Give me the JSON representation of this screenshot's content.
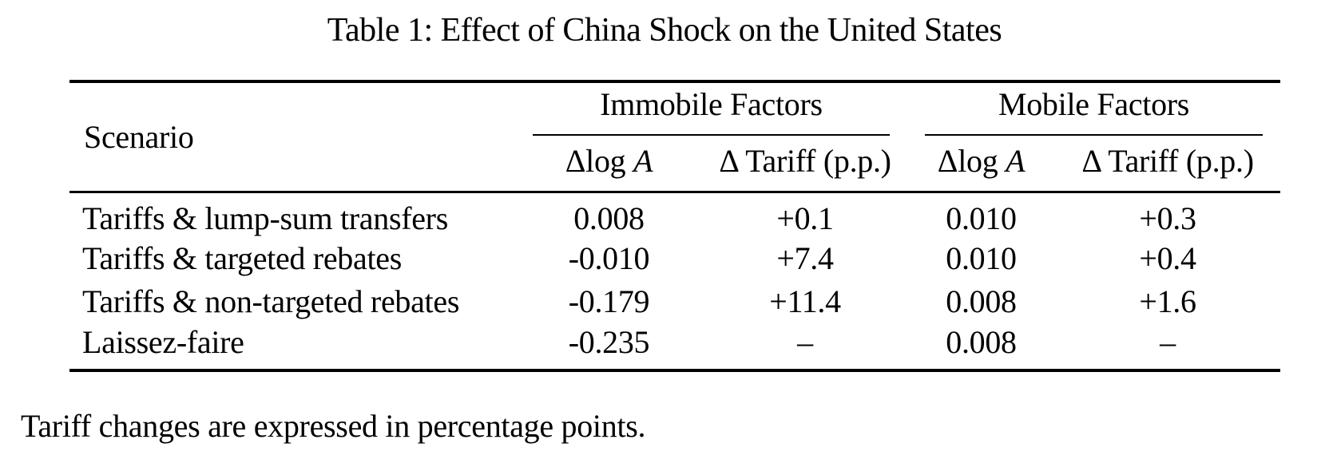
{
  "caption": "Table 1: Effect of China Shock on the United States",
  "table": {
    "scenario_header": "Scenario",
    "groups": [
      {
        "label": "Immobile Factors",
        "columns": [
          {
            "prefix": "Δlog ",
            "italic": "A"
          },
          {
            "prefix": "Δ Tariff (p.p.)",
            "italic": ""
          }
        ]
      },
      {
        "label": "Mobile Factors",
        "columns": [
          {
            "prefix": "Δlog ",
            "italic": "A"
          },
          {
            "prefix": "Δ Tariff (p.p.)",
            "italic": ""
          }
        ]
      }
    ],
    "rows": [
      {
        "scenario": "Tariffs & lump-sum transfers",
        "values": [
          "0.008",
          "+0.1",
          "0.010",
          "+0.3"
        ]
      },
      {
        "scenario": "Tariffs & targeted rebates",
        "values": [
          "-0.010",
          "+7.4",
          "0.010",
          "+0.4"
        ]
      },
      {
        "scenario": "Tariffs & non-targeted rebates",
        "values": [
          "-0.179",
          "+11.4",
          "0.008",
          "+1.6"
        ]
      },
      {
        "scenario": "Laissez-faire",
        "values": [
          "-0.235",
          "–",
          "0.008",
          "–"
        ]
      }
    ]
  },
  "footnote": "Tariff changes are expressed in percentage points.",
  "colors": {
    "text": "#000000",
    "background": "#ffffff",
    "rule": "#000000"
  }
}
